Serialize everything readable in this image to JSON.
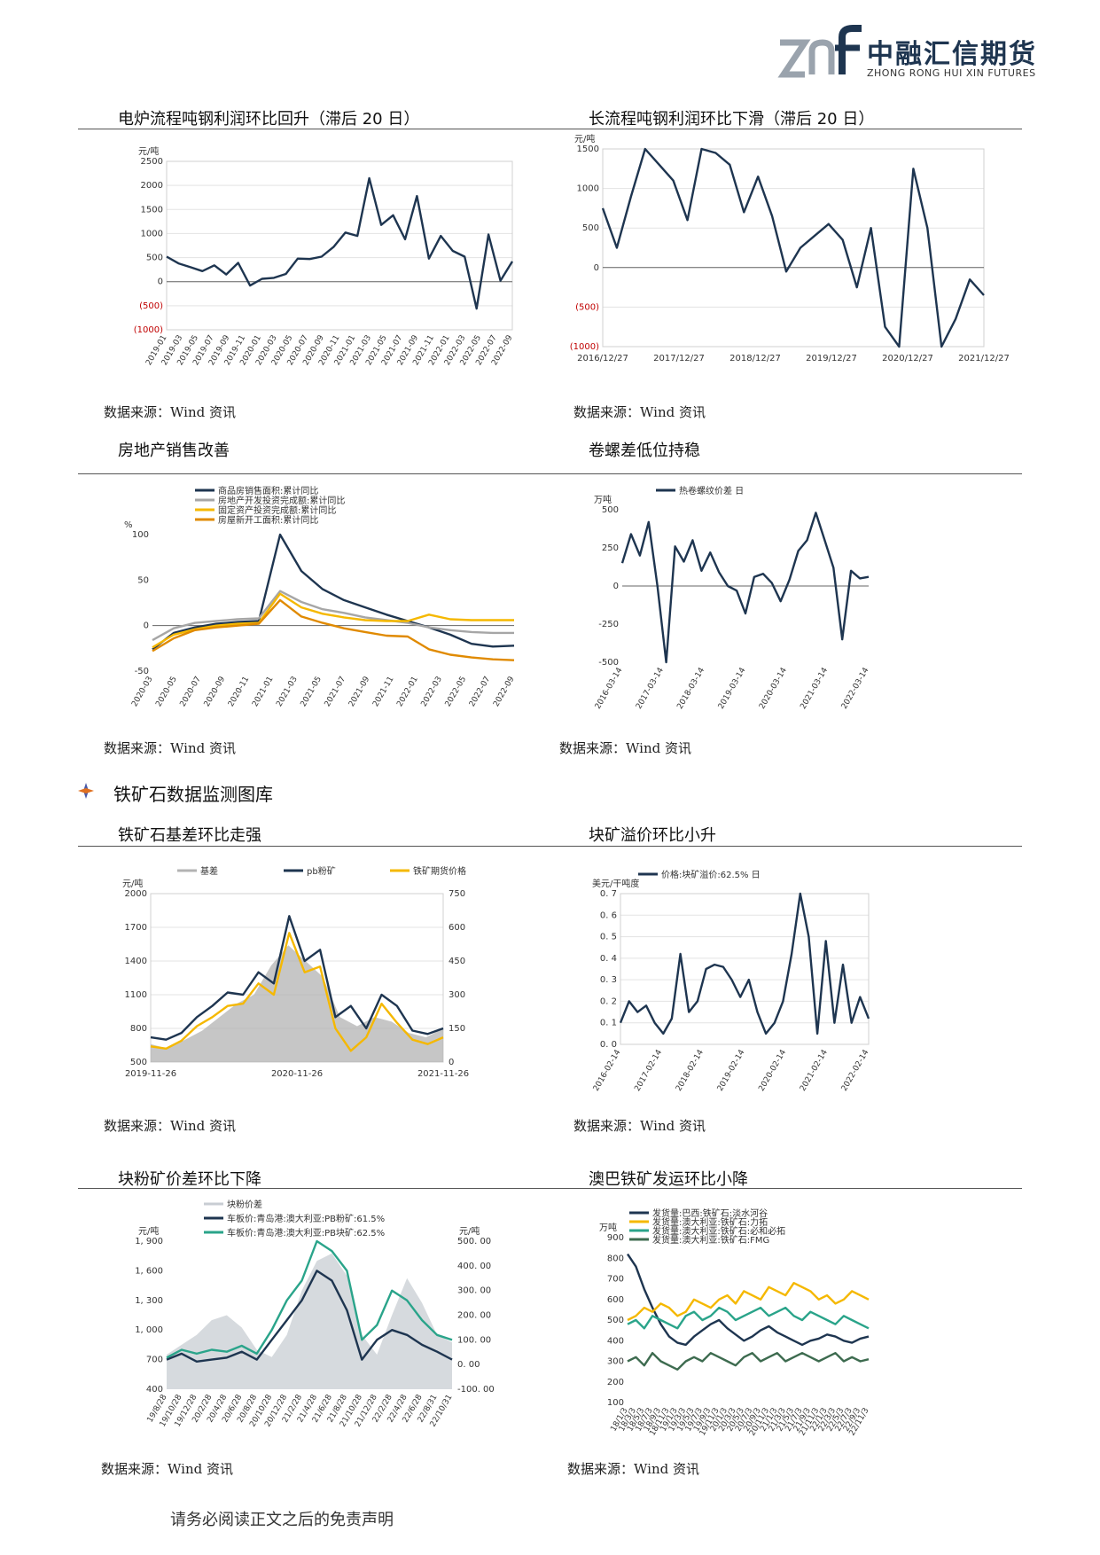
{
  "header": {
    "logo_mark": "znf",
    "company_cn": "中融汇信期货",
    "company_en": "ZHONG RONG HUI XIN FUTURES",
    "colors": {
      "navy": "#1e3550",
      "grey": "#9aa3ad"
    }
  },
  "section_heading": {
    "icon": "bullet-diamond-icon",
    "text": "铁矿石数据监测图库"
  },
  "source_label": "数据来源：Wind 资讯",
  "footer": "请务必阅读正文之后的免责声明",
  "panels": [
    {
      "title": "电炉流程吨钢利润环比回升（滞后 20 日）"
    },
    {
      "title": "长流程吨钢利润环比下滑（滞后 20 日）"
    },
    {
      "title": "房地产销售改善"
    },
    {
      "title": "卷螺差低位持稳"
    },
    {
      "title": "铁矿石基差环比走强"
    },
    {
      "title": "块矿溢价环比小升"
    },
    {
      "title": "块粉矿价差环比下降"
    },
    {
      "title": "澳巴铁矿发运环比小降"
    }
  ],
  "chart_data": [
    {
      "type": "line",
      "unit": "元/吨",
      "ylim": [
        -1000,
        2500
      ],
      "yticks": [
        "2500",
        "2000",
        "1500",
        "1000",
        "500",
        "0",
        "(500)",
        "(1000)"
      ],
      "x_ticks": [
        "2019-01",
        "2019-03",
        "2019-05",
        "2019-07",
        "2019-09",
        "2019-11",
        "2020-01",
        "2020-03",
        "2020-05",
        "2020-07",
        "2020-09",
        "2020-11",
        "2021-01",
        "2021-03",
        "2021-05",
        "2021-07",
        "2021-09",
        "2021-11",
        "2022-01",
        "2022-03",
        "2022-05",
        "2022-07",
        "2022-09"
      ],
      "series": [
        {
          "color": "#1e3550",
          "values": [
            520,
            380,
            300,
            220,
            340,
            150,
            390,
            -80,
            60,
            80,
            160,
            480,
            470,
            520,
            720,
            1020,
            950,
            2150,
            1180,
            1380,
            880,
            1780,
            480,
            950,
            640,
            520,
            -560,
            980,
            20,
            420
          ]
        }
      ],
      "grid": true
    },
    {
      "type": "line",
      "unit": "元/吨",
      "ylim": [
        -1000,
        1500
      ],
      "yticks": [
        "1500",
        "1000",
        "500",
        "0",
        "(500)",
        "(1000)"
      ],
      "x_ticks": [
        "2016/12/27",
        "2017/12/27",
        "2018/12/27",
        "2019/12/27",
        "2020/12/27",
        "2021/12/27"
      ],
      "series": [
        {
          "color": "#1e3550",
          "values": [
            750,
            250,
            900,
            1500,
            1300,
            1100,
            600,
            1500,
            1450,
            1300,
            700,
            1150,
            650,
            -50,
            250,
            400,
            550,
            350,
            -250,
            500,
            -750,
            -1000,
            1250,
            500,
            -1000,
            -650,
            -150,
            -350
          ]
        }
      ],
      "grid": true
    },
    {
      "type": "line",
      "unit": "%",
      "ylim": [
        -50,
        100
      ],
      "yticks": [
        "100",
        "50",
        "0",
        "-50"
      ],
      "x_ticks": [
        "2020-03",
        "2020-05",
        "2020-07",
        "2020-09",
        "2020-11",
        "2021-01",
        "2021-03",
        "2021-05",
        "2021-07",
        "2021-09",
        "2021-11",
        "2022-01",
        "2022-03",
        "2022-05",
        "2022-07",
        "2022-09"
      ],
      "series": [
        {
          "name": "商品房销售面积:累计同比",
          "color": "#1e3550",
          "values": [
            -26,
            -8,
            -2,
            2,
            4,
            5,
            100,
            60,
            40,
            28,
            20,
            12,
            5,
            -2,
            -10,
            -20,
            -23,
            -22
          ]
        },
        {
          "name": "房地产开发投资完成额:累计同比",
          "color": "#a6a6a6",
          "values": [
            -16,
            -3,
            3,
            5,
            7,
            8,
            38,
            26,
            18,
            14,
            9,
            6,
            3,
            -2,
            -5,
            -7,
            -8,
            -8
          ]
        },
        {
          "name": "固定资产投资完成额:累计同比",
          "color": "#f5b800",
          "values": [
            -24,
            -10,
            -4,
            0,
            2,
            3,
            35,
            20,
            13,
            9,
            6,
            5,
            5,
            12,
            7,
            6,
            6,
            6
          ]
        },
        {
          "name": "房屋新开工面积:累计同比",
          "color": "#e08a00",
          "values": [
            -28,
            -14,
            -5,
            -2,
            0,
            2,
            28,
            10,
            3,
            -3,
            -7,
            -11,
            -12,
            -26,
            -32,
            -35,
            -37,
            -38
          ]
        }
      ],
      "grid": false
    },
    {
      "type": "line",
      "unit": "万吨",
      "ylim": [
        -500,
        500
      ],
      "yticks": [
        "500",
        "250",
        "0",
        "-250",
        "-500"
      ],
      "x_ticks": [
        "2016-03-14",
        "2017-03-14",
        "2018-03-14",
        "2019-03-14",
        "2020-03-14",
        "2021-03-14",
        "2022-03-14"
      ],
      "series": [
        {
          "name": "热卷螺纹价差 日",
          "color": "#1e3550",
          "values": [
            150,
            340,
            200,
            420,
            0,
            -500,
            260,
            160,
            300,
            100,
            220,
            90,
            0,
            -30,
            -180,
            60,
            80,
            20,
            -100,
            40,
            230,
            300,
            480,
            300,
            120,
            -350,
            100,
            50,
            60
          ]
        }
      ],
      "grid": false
    },
    {
      "type": "line",
      "unit": "元/吨",
      "ylim": [
        500,
        2000
      ],
      "y2lim": [
        0,
        750
      ],
      "yticks": [
        "2000",
        "1700",
        "1400",
        "1100",
        "800",
        "500"
      ],
      "y2ticks": [
        "750",
        "600",
        "450",
        "300",
        "150",
        "0"
      ],
      "x_ticks": [
        "2019-11-26",
        "2020-11-26",
        "2021-11-26"
      ],
      "series": [
        {
          "name": "基差",
          "color": "#b3b3b3",
          "axis": "right",
          "values": [
            80,
            60,
            100,
            140,
            200,
            260,
            300,
            430,
            520,
            450,
            380,
            200,
            160,
            200,
            180,
            130,
            110,
            150
          ]
        },
        {
          "name": "pb粉矿",
          "color": "#1e3550",
          "axis": "left",
          "values": [
            720,
            700,
            760,
            900,
            1000,
            1120,
            1100,
            1300,
            1200,
            1800,
            1400,
            1500,
            900,
            1000,
            800,
            1100,
            1000,
            780,
            750,
            800
          ]
        },
        {
          "name": "铁矿期货价格",
          "color": "#f5b800",
          "axis": "left",
          "values": [
            640,
            620,
            690,
            820,
            900,
            1000,
            1020,
            1200,
            1100,
            1650,
            1300,
            1350,
            800,
            600,
            720,
            1020,
            850,
            700,
            660,
            720
          ]
        }
      ],
      "grid": true
    },
    {
      "type": "line",
      "unit": "美元/干吨度",
      "ylim": [
        0,
        0.7
      ],
      "yticks": [
        "0. 7",
        "0. 6",
        "0. 5",
        "0. 4",
        "0. 3",
        "0. 2",
        "0. 1",
        "0. 0"
      ],
      "x_ticks": [
        "2016-02-14",
        "2017-02-14",
        "2018-02-14",
        "2019-02-14",
        "2020-02-14",
        "2021-02-14",
        "2022-02-14"
      ],
      "series": [
        {
          "name": "价格:块矿溢价:62.5% 日",
          "color": "#1e3550",
          "values": [
            0.1,
            0.2,
            0.15,
            0.18,
            0.1,
            0.05,
            0.12,
            0.42,
            0.15,
            0.2,
            0.35,
            0.37,
            0.36,
            0.3,
            0.22,
            0.3,
            0.15,
            0.05,
            0.1,
            0.2,
            0.42,
            0.7,
            0.5,
            0.05,
            0.48,
            0.1,
            0.37,
            0.1,
            0.22,
            0.12
          ]
        }
      ],
      "grid": true
    },
    {
      "type": "line",
      "unit": "元/吨",
      "unit_right": "元/吨",
      "ylim": [
        400,
        1900
      ],
      "y2lim": [
        -100,
        500
      ],
      "yticks": [
        "1, 900",
        "1, 600",
        "1, 300",
        "1, 000",
        "700",
        "400"
      ],
      "y2ticks": [
        "500. 00",
        "400. 00",
        "300. 00",
        "200. 00",
        "100. 00",
        "0. 00",
        "-100. 00"
      ],
      "x_ticks": [
        "19/8/28",
        "19/10/28",
        "19/12/28",
        "20/2/28",
        "20/4/28",
        "20/6/28",
        "20/8/28",
        "20/10/28",
        "20/12/28",
        "21/2/28",
        "21/4/28",
        "21/6/28",
        "21/8/28",
        "21/10/28",
        "21/12/28",
        "22/2/28",
        "22/4/28",
        "22/6/28",
        "22/8/31",
        "22/10/31"
      ],
      "series": [
        {
          "name": "块粉价差",
          "color": "#c8cdd3",
          "axis": "right",
          "values": [
            40,
            80,
            120,
            180,
            200,
            150,
            60,
            30,
            120,
            300,
            420,
            450,
            360,
            120,
            40,
            200,
            350,
            250,
            120,
            90
          ]
        },
        {
          "name": "车板价:青岛港:澳大利亚:PB粉矿:61.5%",
          "color": "#1e3550",
          "axis": "left",
          "values": [
            700,
            760,
            680,
            700,
            720,
            780,
            700,
            900,
            1100,
            1300,
            1600,
            1500,
            1200,
            700,
            900,
            1000,
            950,
            850,
            780,
            700
          ]
        },
        {
          "name": "车板价:青岛港:澳大利亚:PB块矿:62.5%",
          "color": "#2aa48a",
          "axis": "left",
          "values": [
            720,
            800,
            760,
            800,
            780,
            840,
            760,
            1000,
            1300,
            1500,
            1900,
            1800,
            1600,
            900,
            1050,
            1400,
            1300,
            1100,
            950,
            900
          ]
        }
      ],
      "grid": false
    },
    {
      "type": "line",
      "unit": "万吨",
      "ylim": [
        100,
        900
      ],
      "yticks": [
        "900",
        "800",
        "700",
        "600",
        "500",
        "400",
        "300",
        "200",
        "100"
      ],
      "x_ticks": [
        "18/1/3",
        "18/3/3",
        "18/5/3",
        "18/7/3",
        "18/9/3",
        "18/11/3",
        "19/1/3",
        "19/3/3",
        "19/5/3",
        "19/7/3",
        "19/9/3",
        "19/11/3",
        "20/1/3",
        "20/3/3",
        "20/5/3",
        "20/7/3",
        "20/9/3",
        "20/11/3",
        "21/1/3",
        "21/3/3",
        "21/5/3",
        "21/7/3",
        "21/9/3",
        "21/11/3",
        "22/1/3",
        "22/3/3",
        "22/5/3",
        "22/7/3",
        "22/9/3",
        "22/11/3"
      ],
      "series": [
        {
          "name": "发货量:巴西:铁矿石:淡水河谷",
          "color": "#1e3550",
          "values": [
            820,
            760,
            650,
            560,
            480,
            420,
            390,
            380,
            420,
            450,
            480,
            500,
            460,
            430,
            400,
            420,
            450,
            470,
            440,
            420,
            400,
            380,
            400,
            410,
            430,
            420,
            400,
            390,
            410,
            420
          ]
        },
        {
          "name": "发货量:澳大利亚:铁矿石:力拓",
          "color": "#f5b800",
          "values": [
            500,
            520,
            560,
            540,
            580,
            560,
            520,
            540,
            600,
            580,
            560,
            600,
            620,
            580,
            640,
            620,
            600,
            660,
            640,
            620,
            680,
            660,
            640,
            600,
            620,
            580,
            600,
            640,
            620,
            600
          ]
        },
        {
          "name": "发货量:澳大利亚:铁矿石:必和必拓",
          "color": "#2aa48a",
          "values": [
            480,
            500,
            460,
            520,
            500,
            480,
            460,
            520,
            540,
            500,
            520,
            560,
            540,
            500,
            520,
            540,
            560,
            520,
            540,
            560,
            520,
            500,
            540,
            520,
            500,
            480,
            520,
            500,
            480,
            460
          ]
        },
        {
          "name": "发货量:澳大利亚:铁矿石:FMG",
          "color": "#3d6b4f",
          "values": [
            300,
            320,
            280,
            340,
            300,
            280,
            260,
            300,
            320,
            300,
            340,
            320,
            300,
            280,
            320,
            340,
            300,
            320,
            340,
            300,
            320,
            340,
            320,
            300,
            320,
            340,
            300,
            320,
            300,
            310
          ]
        }
      ],
      "grid": false
    }
  ]
}
